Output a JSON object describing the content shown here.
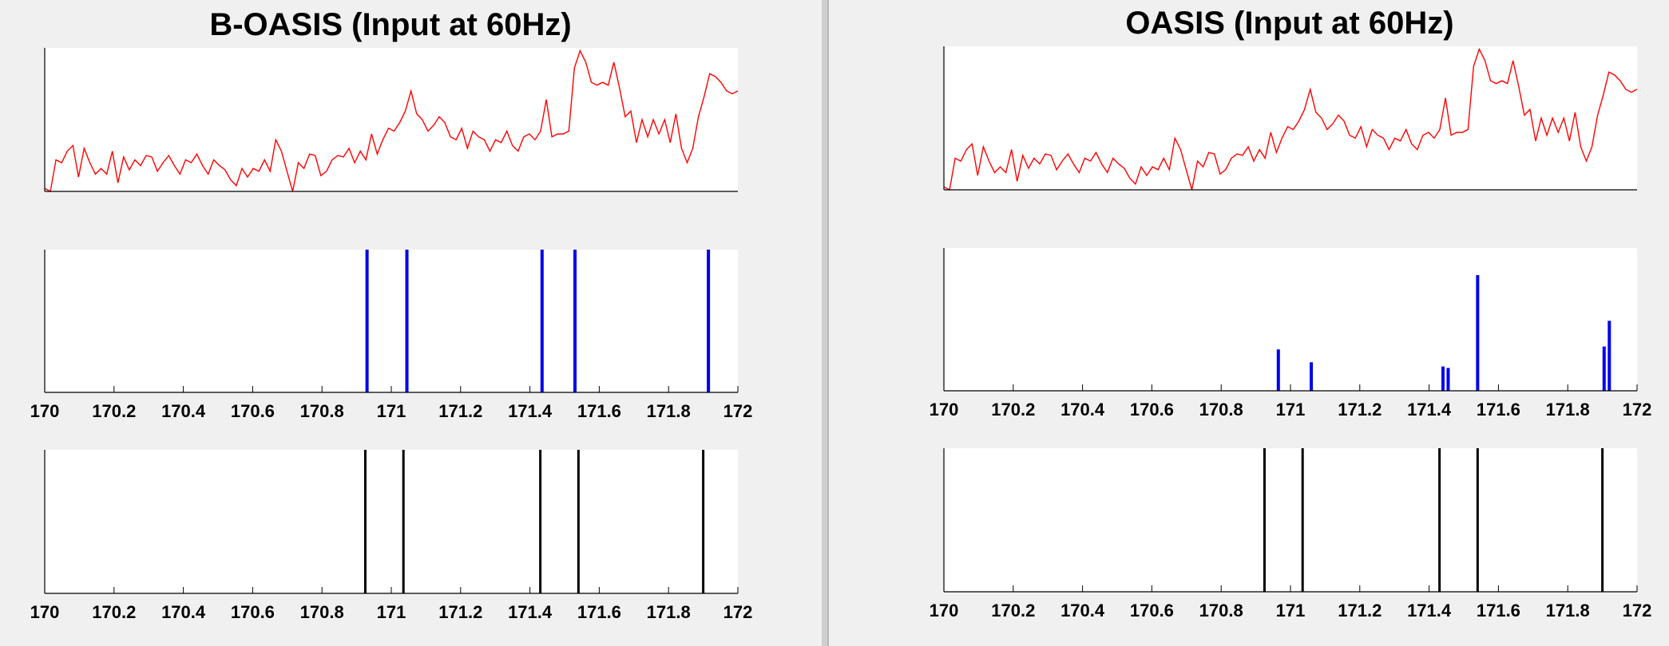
{
  "chart_data": [
    {
      "type": "line",
      "title": "B-OASIS (Input at 60Hz)",
      "panels": [
        {
          "type": "line",
          "color": "#ff0000",
          "xlim": [
            170,
            172
          ],
          "ylim": [
            0,
            1
          ],
          "show_ticks": false,
          "y": [
            0.02,
            0.0,
            0.22,
            0.2,
            0.28,
            0.32,
            0.1,
            0.3,
            0.2,
            0.12,
            0.16,
            0.12,
            0.28,
            0.06,
            0.24,
            0.15,
            0.22,
            0.18,
            0.25,
            0.24,
            0.14,
            0.2,
            0.25,
            0.18,
            0.12,
            0.22,
            0.2,
            0.26,
            0.18,
            0.12,
            0.22,
            0.18,
            0.15,
            0.08,
            0.04,
            0.16,
            0.1,
            0.16,
            0.14,
            0.22,
            0.14,
            0.36,
            0.28,
            0.14,
            0.0,
            0.2,
            0.16,
            0.26,
            0.25,
            0.11,
            0.14,
            0.22,
            0.25,
            0.24,
            0.3,
            0.2,
            0.28,
            0.22,
            0.4,
            0.26,
            0.36,
            0.44,
            0.42,
            0.48,
            0.56,
            0.7,
            0.54,
            0.5,
            0.42,
            0.46,
            0.52,
            0.48,
            0.38,
            0.36,
            0.44,
            0.3,
            0.42,
            0.38,
            0.36,
            0.28,
            0.36,
            0.34,
            0.42,
            0.32,
            0.28,
            0.38,
            0.4,
            0.36,
            0.42,
            0.64,
            0.38,
            0.4,
            0.4,
            0.42,
            0.86,
            0.98,
            0.9,
            0.76,
            0.74,
            0.76,
            0.74,
            0.9,
            0.72,
            0.52,
            0.56,
            0.34,
            0.5,
            0.38,
            0.5,
            0.4,
            0.5,
            0.34,
            0.54,
            0.3,
            0.2,
            0.3,
            0.52,
            0.66,
            0.82,
            0.8,
            0.76,
            0.7,
            0.68,
            0.7
          ],
          "x_start": 170.0,
          "x_end": 172.0
        },
        {
          "type": "spike",
          "color": "#0000ee",
          "xlim": [
            170,
            172
          ],
          "ylim": [
            0,
            1
          ],
          "line_width": 4,
          "x": [
            170.93,
            171.045,
            171.435,
            171.53,
            171.915
          ],
          "values": [
            1,
            1,
            1,
            1,
            1
          ],
          "xticks": [
            170,
            170.2,
            170.4,
            170.6,
            170.8,
            171,
            171.2,
            171.4,
            171.6,
            171.8,
            172
          ],
          "xtick_labels": [
            "170",
            "170.2",
            "170.4",
            "170.6",
            "170.8",
            "171",
            "171.2",
            "171.4",
            "171.6",
            "171.8",
            "172"
          ]
        },
        {
          "type": "spike",
          "color": "#000000",
          "xlim": [
            170,
            172
          ],
          "ylim": [
            0,
            1
          ],
          "line_width": 3,
          "x": [
            170.925,
            171.035,
            171.43,
            171.54,
            171.9
          ],
          "values": [
            1,
            1,
            1,
            1,
            1
          ],
          "xticks": [
            170,
            170.2,
            170.4,
            170.6,
            170.8,
            171,
            171.2,
            171.4,
            171.6,
            171.8,
            172
          ],
          "xtick_labels": [
            "170",
            "170.2",
            "170.4",
            "170.6",
            "170.8",
            "171",
            "171.2",
            "171.4",
            "171.6",
            "171.8",
            "172"
          ]
        }
      ]
    },
    {
      "type": "line",
      "title": "OASIS (Input at 60Hz)",
      "panels": [
        {
          "type": "line",
          "color": "#ff0000",
          "xlim": [
            170,
            172
          ],
          "ylim": [
            0,
            1
          ],
          "show_ticks": false,
          "y": [
            0.02,
            0.0,
            0.22,
            0.2,
            0.28,
            0.32,
            0.1,
            0.3,
            0.2,
            0.12,
            0.16,
            0.12,
            0.28,
            0.06,
            0.24,
            0.15,
            0.22,
            0.18,
            0.25,
            0.24,
            0.14,
            0.2,
            0.25,
            0.18,
            0.12,
            0.22,
            0.2,
            0.26,
            0.18,
            0.12,
            0.22,
            0.18,
            0.15,
            0.08,
            0.04,
            0.16,
            0.1,
            0.16,
            0.14,
            0.22,
            0.14,
            0.36,
            0.28,
            0.14,
            0.0,
            0.2,
            0.16,
            0.26,
            0.25,
            0.11,
            0.14,
            0.22,
            0.25,
            0.24,
            0.3,
            0.2,
            0.28,
            0.22,
            0.4,
            0.26,
            0.36,
            0.44,
            0.42,
            0.48,
            0.56,
            0.7,
            0.54,
            0.5,
            0.42,
            0.46,
            0.52,
            0.48,
            0.38,
            0.36,
            0.44,
            0.3,
            0.42,
            0.38,
            0.36,
            0.28,
            0.36,
            0.34,
            0.42,
            0.32,
            0.28,
            0.38,
            0.4,
            0.36,
            0.42,
            0.64,
            0.38,
            0.4,
            0.4,
            0.42,
            0.86,
            0.98,
            0.9,
            0.76,
            0.74,
            0.76,
            0.74,
            0.9,
            0.72,
            0.52,
            0.56,
            0.34,
            0.5,
            0.38,
            0.5,
            0.4,
            0.5,
            0.34,
            0.54,
            0.3,
            0.2,
            0.3,
            0.52,
            0.66,
            0.82,
            0.8,
            0.76,
            0.7,
            0.68,
            0.7
          ],
          "x_start": 170.0,
          "x_end": 172.0
        },
        {
          "type": "spike",
          "color": "#0000ee",
          "xlim": [
            170,
            172
          ],
          "ylim": [
            0,
            1
          ],
          "line_width": 4,
          "x": [
            170.965,
            171.06,
            171.44,
            171.455,
            171.54,
            171.905,
            171.92
          ],
          "values": [
            0.29,
            0.2,
            0.17,
            0.16,
            0.81,
            0.31,
            0.49
          ],
          "xticks": [
            170,
            170.2,
            170.4,
            170.6,
            170.8,
            171,
            171.2,
            171.4,
            171.6,
            171.8,
            172
          ],
          "xtick_labels": [
            "170",
            "170.2",
            "170.4",
            "170.6",
            "170.8",
            "171",
            "171.2",
            "171.4",
            "171.6",
            "171.8",
            "172"
          ]
        },
        {
          "type": "spike",
          "color": "#000000",
          "xlim": [
            170,
            172
          ],
          "ylim": [
            0,
            1
          ],
          "line_width": 3,
          "x": [
            170.925,
            171.035,
            171.43,
            171.54,
            171.9
          ],
          "values": [
            1,
            1,
            1,
            1,
            1
          ],
          "xticks": [
            170,
            170.2,
            170.4,
            170.6,
            170.8,
            171,
            171.2,
            171.4,
            171.6,
            171.8,
            172
          ],
          "xtick_labels": [
            "170",
            "170.2",
            "170.4",
            "170.6",
            "170.8",
            "171",
            "171.2",
            "171.4",
            "171.6",
            "171.8",
            "172"
          ]
        }
      ]
    }
  ]
}
